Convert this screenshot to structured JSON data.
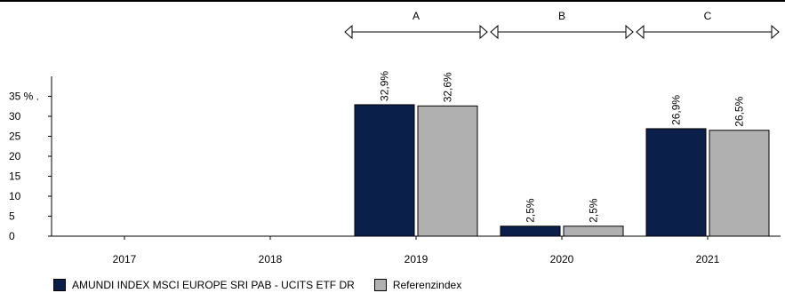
{
  "chart_data": {
    "type": "bar",
    "categories": [
      "2017",
      "2018",
      "2019",
      "2020",
      "2021"
    ],
    "series": [
      {
        "name": "AMUNDI INDEX MSCI EUROPE SRI PAB - UCITS ETF DR",
        "color": "#0b1f4b",
        "values": [
          null,
          null,
          32.9,
          2.5,
          26.9
        ],
        "labels": [
          "",
          "",
          "32,9%",
          "2,5%",
          "26,9%"
        ]
      },
      {
        "name": "Referenzindex",
        "color": "#b0b0b0",
        "values": [
          null,
          null,
          32.6,
          2.5,
          26.5
        ],
        "labels": [
          "",
          "",
          "32,6%",
          "2,5%",
          "26,5%"
        ]
      }
    ],
    "yticks": [
      0,
      5,
      10,
      15,
      20,
      25,
      30,
      35
    ],
    "ytick_labels": [
      "0",
      "5",
      "10",
      "15",
      "20",
      "25",
      "30",
      "35 % ."
    ],
    "ylim": [
      0,
      38
    ],
    "periods": [
      {
        "label": "A",
        "from": "2019",
        "to": "2019"
      },
      {
        "label": "B",
        "from": "2020",
        "to": "2020"
      },
      {
        "label": "C",
        "from": "2021",
        "to": "2021"
      }
    ],
    "grid": false,
    "legend_position": "bottom-left"
  }
}
